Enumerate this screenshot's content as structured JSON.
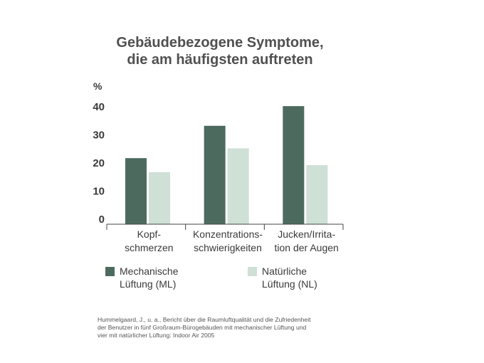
{
  "title_lines": [
    "Gebäudebezogene Symptome,",
    "die am häufigsten auftreten"
  ],
  "source_lines": [
    "Hummelgaard, J., u. a., Bericht über die Raumluftqualität und die Zufriedenheit",
    "der Benutzer in fünf Großraum-Bürogebäuden mit mechanischer Lüftung und",
    "vier mit natürlicher Lüftung: Indoor Air 2005"
  ],
  "legend": [
    {
      "lines": [
        "Mechanische",
        "Lüftung (ML)"
      ]
    },
    {
      "lines": [
        "Natürliche",
        "Lüftung (NL)"
      ]
    }
  ],
  "chart_data": {
    "type": "bar",
    "title": "Gebäudebezogene Symptome, die am häufigsten auftreten",
    "ylabel": "%",
    "ylim": [
      0,
      40
    ],
    "yticks": [
      0,
      10,
      20,
      30,
      40
    ],
    "categories": [
      [
        "Kopf-",
        "schmerzen"
      ],
      [
        "Konzentrations-",
        "schwierigkeiten"
      ],
      [
        "Jucken/Irrita-",
        "tion der Augen"
      ]
    ],
    "series": [
      {
        "name": "Mechanische Lüftung (ML)",
        "color": "#4c6b5e",
        "values": [
          23.5,
          35,
          42
        ]
      },
      {
        "name": "Natürliche Lüftung (NL)",
        "color": "#cfe0d6",
        "values": [
          18.5,
          27,
          21
        ]
      }
    ],
    "grid": false,
    "legend_position": "bottom"
  }
}
